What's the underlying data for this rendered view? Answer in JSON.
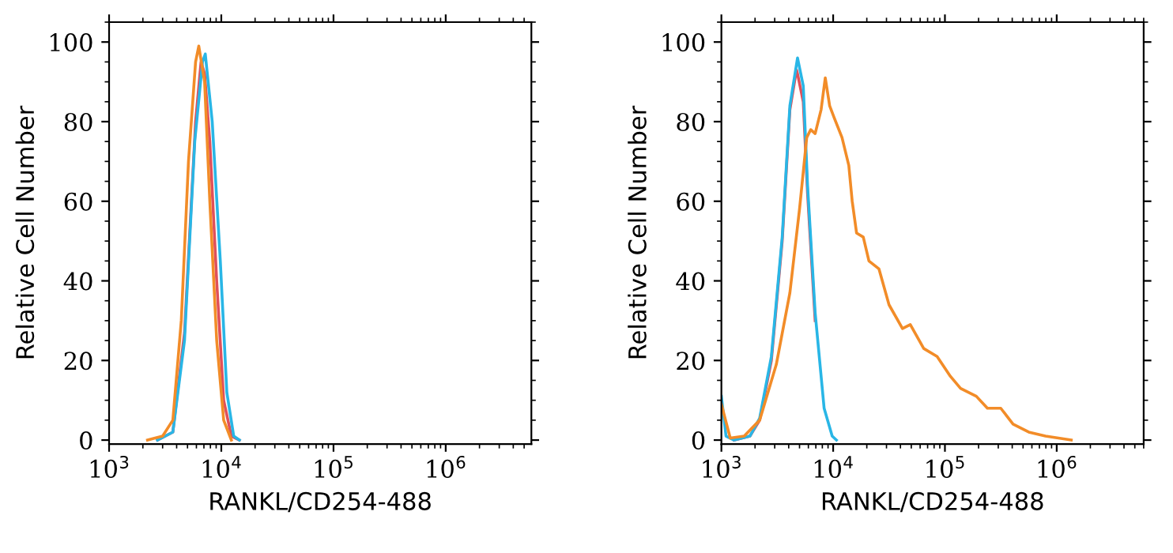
{
  "chart_data": [
    {
      "type": "line",
      "xlabel": "RANKL/CD254-488",
      "ylabel": "Relative Cell Number",
      "log": "x",
      "xlim": [
        1000,
        5800000
      ],
      "ylim": [
        -1,
        105
      ],
      "xticks": [
        {
          "value": 1000,
          "label": "10$^{3}$"
        },
        {
          "value": 10000,
          "label": "10$^{4}$"
        },
        {
          "value": 100000,
          "label": "10$^{5}$"
        },
        {
          "value": 1000000,
          "label": "10$^{6}$"
        }
      ],
      "yticks": [
        0,
        20,
        40,
        60,
        80,
        100
      ],
      "grid": false,
      "marker": "none",
      "line_style": "solid",
      "series": [
        {
          "color": "#e0505a",
          "x": [
            2700,
            3700,
            4700,
            5900,
            6600,
            7100,
            7900,
            9100,
            10500,
            12300,
            14500
          ],
          "values": [
            0,
            2,
            27,
            80,
            95,
            92,
            75,
            40,
            10,
            1,
            0
          ]
        },
        {
          "color": "#29b6e6",
          "x": [
            2700,
            3700,
            4700,
            5800,
            6800,
            7200,
            8300,
            9800,
            11200,
            12900,
            14500
          ],
          "values": [
            0,
            2,
            25,
            75,
            95,
            97,
            80,
            45,
            12,
            1,
            0
          ]
        },
        {
          "color": "#f28c28",
          "x": [
            2200,
            3000,
            3700,
            4400,
            5100,
            5900,
            6300,
            7100,
            7900,
            9100,
            10500,
            12300
          ],
          "values": [
            0,
            1,
            5,
            30,
            70,
            95,
            99,
            90,
            60,
            25,
            5,
            0
          ]
        }
      ]
    },
    {
      "type": "line",
      "xlabel": "RANKL/CD254-488",
      "ylabel": "Relative Cell Number",
      "log": "x",
      "xlim": [
        1000,
        6000000
      ],
      "ylim": [
        -1,
        105
      ],
      "xticks": [
        {
          "value": 1000,
          "label": "10$^{3}$"
        },
        {
          "value": 10000,
          "label": "10$^{4}$"
        },
        {
          "value": 100000,
          "label": "10$^{5}$"
        },
        {
          "value": 1000000,
          "label": "10$^{6}$"
        }
      ],
      "yticks": [
        0,
        20,
        40,
        60,
        80,
        100
      ],
      "grid": false,
      "marker": "none",
      "line_style": "solid",
      "series": [
        {
          "color": "#e0505a",
          "x": [
            1300,
            1800,
            2200,
            2800,
            3500,
            4100,
            4700,
            4800,
            5400,
            5900,
            6900
          ],
          "values": [
            0,
            1,
            5,
            20,
            50,
            83,
            93,
            92,
            85,
            62,
            30
          ]
        },
        {
          "color": "#29b6e6",
          "x": [
            1000,
            1100,
            1300,
            1800,
            2200,
            2800,
            3500,
            4100,
            4800,
            5400,
            5900,
            6900,
            8300,
            9800,
            10700
          ],
          "values": [
            11,
            1,
            0,
            1,
            5.5,
            21,
            51,
            84,
            96,
            89,
            64,
            32,
            8,
            1,
            0
          ]
        },
        {
          "color": "#f28c28",
          "x": [
            1000,
            1200,
            1600,
            2200,
            3100,
            4100,
            5000,
            5800,
            6300,
            6900,
            7800,
            8500,
            9300,
            10200,
            12000,
            13800,
            14800,
            16200,
            18600,
            20900,
            25700,
            31600,
            41700,
            49000,
            64600,
            85100,
            112000,
            138000,
            191000,
            240000,
            316000,
            407000,
            562000,
            794000,
            1350000
          ],
          "values": [
            9,
            0.5,
            1,
            5,
            19,
            37,
            58,
            76,
            78,
            77,
            83,
            91,
            84,
            81,
            76,
            69,
            60,
            52,
            51,
            45,
            43,
            34,
            28,
            29,
            23,
            21,
            16,
            13,
            11,
            8,
            8,
            4,
            2,
            1,
            0
          ]
        }
      ]
    }
  ]
}
